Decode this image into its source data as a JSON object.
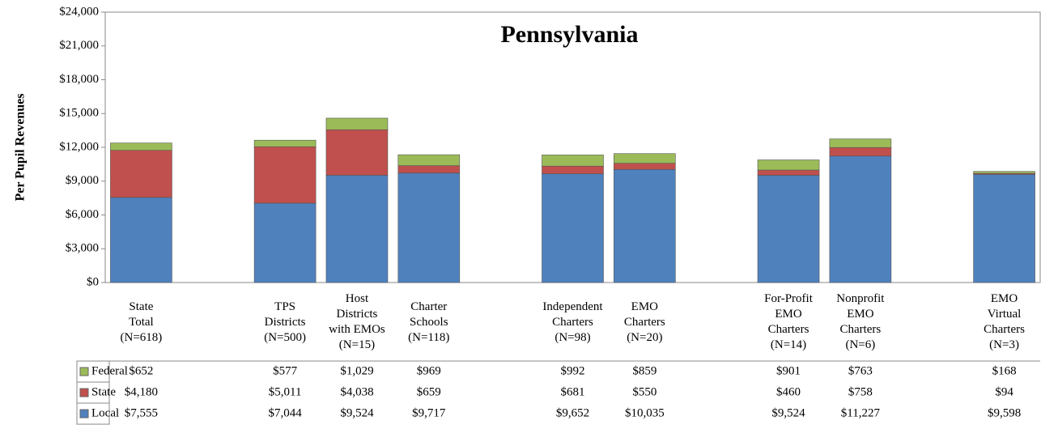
{
  "chart_data": {
    "type": "stacked_bar",
    "title": "Pennsylvania",
    "y_label": "Per Pupil Revenues",
    "categories": [
      "State\nTotal\n(N=618)",
      null,
      "TPS\nDistricts\n(N=500)",
      "Host\nDistricts\nwith EMOs\n(N=15)",
      "Charter\nSchools\n(N=118)",
      null,
      "Independent\nCharters\n(N=98)",
      "EMO\nCharters\n(N=20)",
      null,
      "For-Profit\nEMO\nCharters\n(N=14)",
      "Nonprofit\nEMO\nCharters\n(N=6)",
      null,
      "EMO\nVirtual\nCharters\n(N=3)"
    ],
    "series": [
      {
        "name": "Federal",
        "color": "#9bbb59",
        "values": [
          652,
          null,
          577,
          1029,
          969,
          null,
          992,
          859,
          null,
          901,
          763,
          null,
          168
        ],
        "value_labels": [
          "$652",
          null,
          "$577",
          "$1,029",
          "$969",
          null,
          "$992",
          "$859",
          null,
          "$901",
          "$763",
          null,
          "$168"
        ]
      },
      {
        "name": "State",
        "color": "#c0504d",
        "values": [
          4180,
          null,
          5011,
          4038,
          659,
          null,
          681,
          550,
          null,
          460,
          758,
          null,
          94
        ],
        "value_labels": [
          "$4,180",
          null,
          "$5,011",
          "$4,038",
          "$659",
          null,
          "$681",
          "$550",
          null,
          "$460",
          "$758",
          null,
          "$94"
        ]
      },
      {
        "name": "Local",
        "color": "#4f81bd",
        "values": [
          7555,
          null,
          7044,
          9524,
          9717,
          null,
          9652,
          10035,
          null,
          9524,
          11227,
          null,
          9598
        ],
        "value_labels": [
          "$7,555",
          null,
          "$7,044",
          "$9,524",
          "$9,717",
          null,
          "$9,652",
          "$10,035",
          null,
          "$9,524",
          "$11,227",
          null,
          "$9,598"
        ]
      }
    ],
    "ylim": [
      0,
      24000
    ],
    "yticks": [
      {
        "value": 0,
        "label": "$0"
      },
      {
        "value": 3000,
        "label": "$3,000"
      },
      {
        "value": 6000,
        "label": "$6,000"
      },
      {
        "value": 9000,
        "label": "$9,000"
      },
      {
        "value": 12000,
        "label": "$12,000"
      },
      {
        "value": 15000,
        "label": "$15,000"
      },
      {
        "value": 18000,
        "label": "$18,000"
      },
      {
        "value": 21000,
        "label": "$21,000"
      },
      {
        "value": 24000,
        "label": "$24,000"
      }
    ]
  }
}
